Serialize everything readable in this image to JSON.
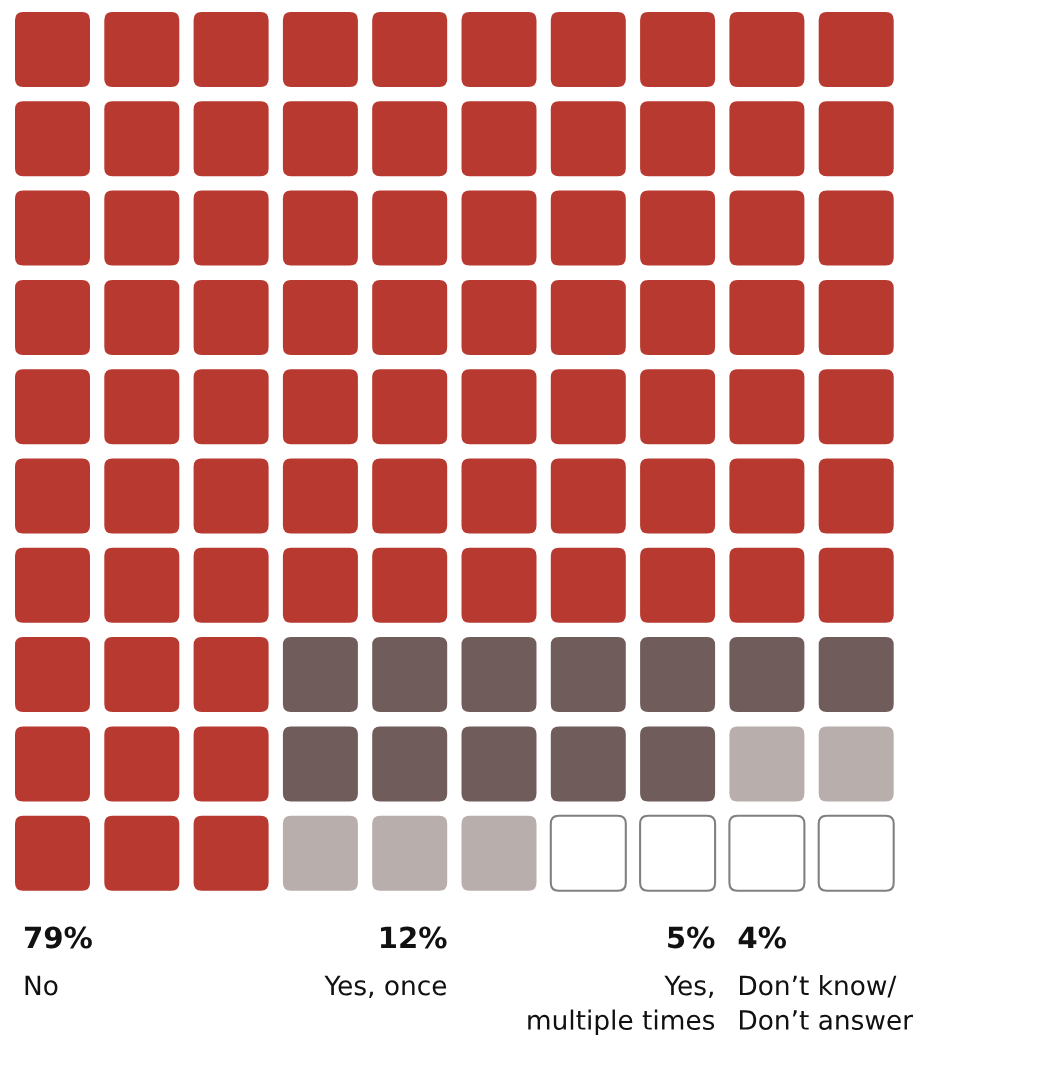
{
  "chart_data": {
    "type": "other",
    "categories": [
      "No",
      "Yes, once",
      "Yes,\nmultiple times",
      "Don’t know/\nDon’t answer"
    ],
    "values": [
      79,
      12,
      5,
      4
    ],
    "value_labels": [
      "79%",
      "12%",
      "5%",
      "4%"
    ],
    "colors": [
      "#b8392f",
      "#705c5a",
      "#b8aeac",
      "#ffffff"
    ]
  }
}
